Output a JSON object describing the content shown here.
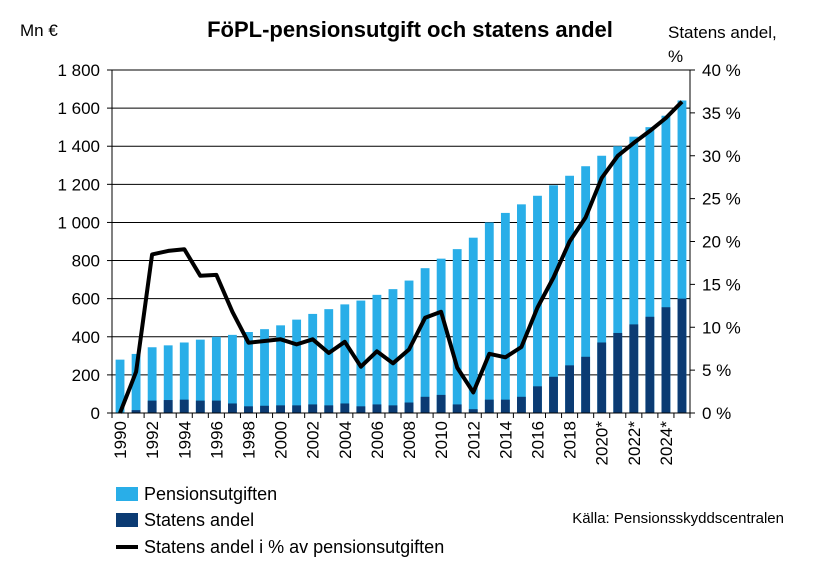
{
  "chart_data": {
    "type": "bar",
    "title": "FöPL-pensionsutgift och statens andel",
    "ylabel_left": "Mn €",
    "ylabel_right_line1": "Statens andel,",
    "ylabel_right_line2": "%",
    "ylim_left": [
      0,
      1800
    ],
    "ylim_right": [
      0,
      40
    ],
    "y_ticks_left": [
      "1 800",
      "1 600",
      "1 400",
      "1 200",
      "1 000",
      "800",
      "600",
      "400",
      "200",
      "0"
    ],
    "y_ticks_left_values": [
      1800,
      1600,
      1400,
      1200,
      1000,
      800,
      600,
      400,
      200,
      0
    ],
    "y_ticks_right": [
      "40 %",
      "35 %",
      "30 %",
      "25 %",
      "20 %",
      "15 %",
      "10 %",
      "5 %",
      "0 %"
    ],
    "y_ticks_right_values": [
      40,
      35,
      30,
      25,
      20,
      15,
      10,
      5,
      0
    ],
    "grid": true,
    "legend_position": "bottom-left",
    "categories": [
      1990,
      1991,
      1992,
      1993,
      1994,
      1995,
      1996,
      1997,
      1998,
      1999,
      2000,
      2001,
      2002,
      2003,
      2004,
      2005,
      2006,
      2007,
      2008,
      2009,
      2010,
      2011,
      2012,
      2013,
      2014,
      2015,
      2016,
      2017,
      2018,
      2019,
      2020,
      2021,
      2022,
      2023,
      2024,
      2025
    ],
    "x_tick_labels": [
      "1990",
      "1992",
      "1994",
      "1996",
      "1998",
      "2000",
      "2002",
      "2004",
      "2006",
      "2008",
      "2010",
      "2012",
      "2014",
      "2016",
      "2018",
      "2020*",
      "2022*",
      "2024*"
    ],
    "x_tick_years": [
      1990,
      1992,
      1994,
      1996,
      1998,
      2000,
      2002,
      2004,
      2006,
      2008,
      2010,
      2012,
      2014,
      2016,
      2018,
      2020,
      2022,
      2024
    ],
    "series": [
      {
        "name": "Pensionsutgiften",
        "kind": "bar",
        "axis": "left",
        "color": "#29aee8",
        "values": [
          280,
          310,
          345,
          355,
          370,
          385,
          400,
          410,
          425,
          440,
          460,
          490,
          520,
          545,
          570,
          590,
          620,
          650,
          695,
          760,
          810,
          860,
          920,
          1000,
          1050,
          1095,
          1140,
          1195,
          1245,
          1295,
          1350,
          1400,
          1450,
          1500,
          1560,
          1640
        ]
      },
      {
        "name": "Statens andel",
        "kind": "bar",
        "axis": "left",
        "color": "#0b3b73",
        "values": [
          0,
          15,
          65,
          68,
          70,
          65,
          65,
          50,
          35,
          38,
          40,
          40,
          45,
          40,
          50,
          35,
          45,
          40,
          55,
          85,
          95,
          45,
          20,
          70,
          70,
          85,
          140,
          190,
          250,
          295,
          370,
          420,
          465,
          505,
          555,
          600
        ]
      },
      {
        "name": "Statens andel i % av pensionsutgiften",
        "kind": "line",
        "axis": "right",
        "color": "#000000",
        "values": [
          0,
          4.8,
          18.5,
          18.9,
          19.1,
          16.0,
          16.1,
          11.8,
          8.2,
          8.4,
          8.6,
          8.0,
          8.6,
          7.0,
          8.3,
          5.4,
          7.2,
          5.8,
          7.4,
          11.1,
          11.8,
          5.3,
          2.4,
          6.9,
          6.5,
          7.7,
          12.3,
          15.8,
          20.0,
          22.8,
          27.4,
          30.0,
          31.5,
          32.9,
          34.4,
          36.3
        ]
      }
    ],
    "source": "Källa: Pensionsskyddscentralen"
  }
}
